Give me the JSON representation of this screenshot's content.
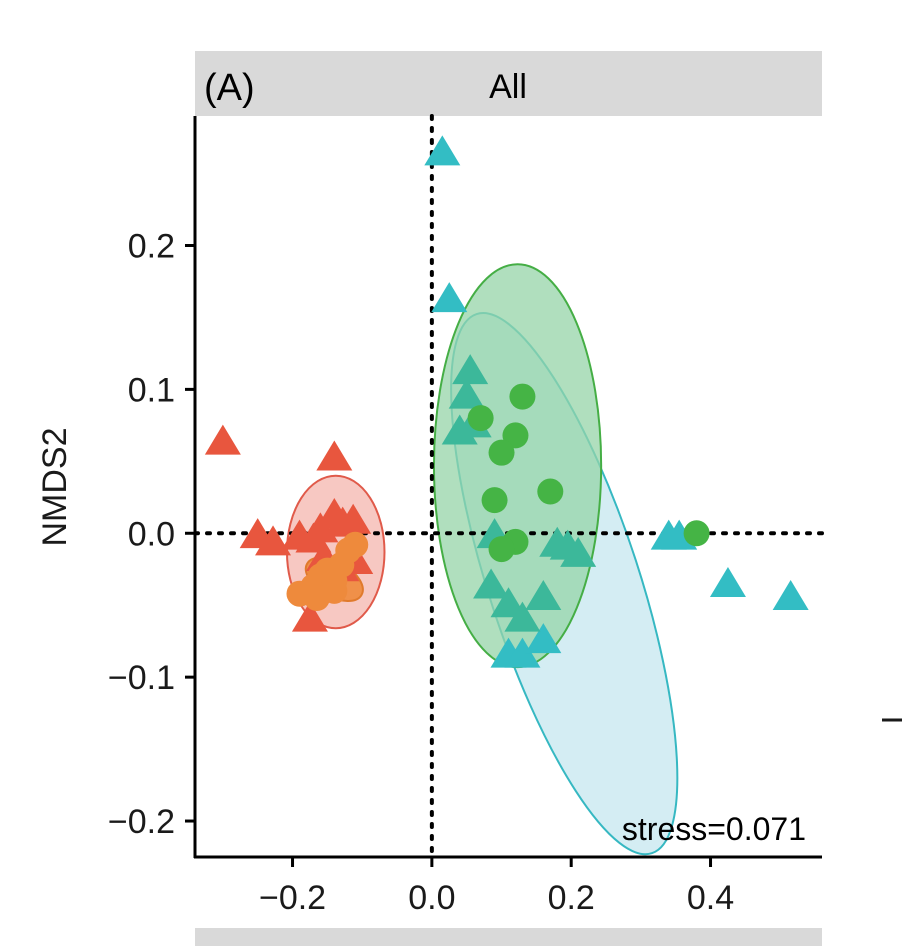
{
  "chart_data": {
    "type": "scatter",
    "panel_label": "(A)",
    "title": "All",
    "xlabel": "",
    "ylabel": "NMDS2",
    "xlim": [
      -0.34,
      0.56
    ],
    "ylim": [
      -0.225,
      0.29
    ],
    "x_ticks": [
      -0.2,
      0.0,
      0.2,
      0.4
    ],
    "x_tick_labels": [
      "−0.2",
      "0.0",
      "0.2",
      "0.4"
    ],
    "y_ticks": [
      -0.2,
      -0.1,
      0.0,
      0.1,
      0.2
    ],
    "y_tick_labels": [
      "−0.2",
      "−0.1",
      "0.0",
      "0.1",
      "0.2"
    ],
    "annotation": "stress=0.071",
    "reference_lines": {
      "x": 0,
      "y": 0
    },
    "grid": false,
    "colors": {
      "red": "#E8563E",
      "orange": "#EE8A3C",
      "green": "#45B445",
      "teal": "#33BDC4",
      "midteal": "#3CB89A",
      "strip": "#D9D9D9"
    },
    "series": [
      {
        "color": "red",
        "marker": "triangle",
        "ellipse": {
          "cx": -0.138,
          "cy": -0.013,
          "rx": 0.07,
          "ry": 0.053,
          "angle": 0,
          "fill": "#F4B5AD",
          "stroke": "#E05A4A"
        },
        "points": [
          [
            -0.3,
            0.063
          ],
          [
            -0.14,
            0.052
          ],
          [
            -0.25,
            -0.002
          ],
          [
            -0.228,
            -0.007
          ],
          [
            -0.19,
            -0.003
          ],
          [
            -0.17,
            -0.005
          ],
          [
            -0.16,
            0.002
          ],
          [
            -0.14,
            0.012
          ],
          [
            -0.128,
            0.006
          ],
          [
            -0.113,
            0.008
          ],
          [
            -0.155,
            -0.018
          ],
          [
            -0.13,
            -0.025
          ],
          [
            -0.11,
            -0.02
          ],
          [
            -0.175,
            -0.06
          ]
        ]
      },
      {
        "color": "orange",
        "marker": "circle",
        "ellipse": {
          "cx": -0.14,
          "cy": -0.032,
          "rx": 0.045,
          "ry": 0.012,
          "angle": 30,
          "fill": "#EE8A3C",
          "stroke": "#E07A2C"
        },
        "points": [
          [
            -0.19,
            -0.042
          ],
          [
            -0.17,
            -0.037
          ],
          [
            -0.16,
            -0.03
          ],
          [
            -0.15,
            -0.026
          ],
          [
            -0.14,
            -0.033
          ],
          [
            -0.13,
            -0.022
          ],
          [
            -0.12,
            -0.012
          ],
          [
            -0.11,
            -0.008
          ],
          [
            -0.165,
            -0.045
          ],
          [
            -0.14,
            -0.04
          ]
        ]
      },
      {
        "color": "teal",
        "marker": "triangle",
        "ellipse": {
          "cx": 0.19,
          "cy": -0.035,
          "rx": 0.108,
          "ry": 0.197,
          "angle": -18,
          "fill": "#C5E7EF",
          "stroke": "#36B8C2"
        },
        "points": [
          [
            0.015,
            0.264
          ],
          [
            0.025,
            0.162
          ],
          [
            0.355,
            -0.003
          ],
          [
            0.34,
            -0.003
          ],
          [
            0.425,
            -0.036
          ],
          [
            0.515,
            -0.045
          ],
          [
            0.11,
            -0.085
          ],
          [
            0.13,
            -0.085
          ],
          [
            0.16,
            -0.075
          ]
        ]
      },
      {
        "color": "midteal",
        "marker": "triangle",
        "points": [
          [
            0.055,
            0.112
          ],
          [
            0.05,
            0.095
          ],
          [
            0.06,
            0.075
          ],
          [
            0.04,
            0.07
          ],
          [
            0.09,
            -0.002
          ],
          [
            0.18,
            -0.008
          ],
          [
            0.195,
            -0.01
          ],
          [
            0.21,
            -0.015
          ],
          [
            0.085,
            -0.037
          ],
          [
            0.16,
            -0.045
          ],
          [
            0.11,
            -0.05
          ],
          [
            0.13,
            -0.06
          ]
        ]
      },
      {
        "color": "green",
        "marker": "circle",
        "ellipse": {
          "cx": 0.123,
          "cy": 0.047,
          "rx": 0.12,
          "ry": 0.14,
          "angle": 0,
          "fill": "#96D4A8",
          "stroke": "#45AE45"
        },
        "points": [
          [
            0.07,
            0.08
          ],
          [
            0.13,
            0.095
          ],
          [
            0.12,
            0.068
          ],
          [
            0.1,
            0.056
          ],
          [
            0.09,
            0.023
          ],
          [
            0.17,
            0.029
          ],
          [
            0.12,
            -0.006
          ],
          [
            0.1,
            -0.011
          ],
          [
            0.38,
            0.0
          ]
        ]
      }
    ]
  }
}
